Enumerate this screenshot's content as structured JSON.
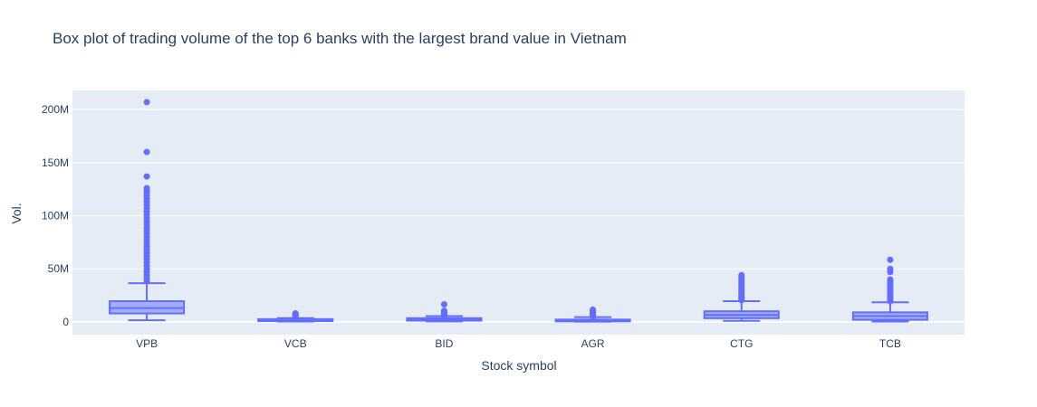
{
  "chart_data": {
    "type": "box",
    "title": "Box plot of trading volume of the top 6 banks with the largest brand value in Vietnam",
    "xlabel": "Stock symbol",
    "ylabel": "Vol.",
    "ylim": [
      -12000000,
      218000000
    ],
    "yticks": [
      0,
      50000000,
      100000000,
      150000000,
      200000000
    ],
    "ytick_labels": [
      "0",
      "50M",
      "100M",
      "150M",
      "200M"
    ],
    "grid": true,
    "legend": "none",
    "colors": {
      "box": "#636efa",
      "fill": "rgba(99,110,250,0.5)",
      "plot_bg": "#e5ecf6",
      "grid": "#ffffff",
      "text": "#2a3f5f"
    },
    "categories": [
      "VPB",
      "VCB",
      "BID",
      "AGR",
      "CTG",
      "TCB"
    ],
    "boxes": [
      {
        "name": "VPB",
        "min": 1500000,
        "q1": 8000000,
        "median": 13000000,
        "q3": 19500000,
        "max": 36500000,
        "outliers": [
          207000000,
          160000000,
          137000000,
          126000000,
          124000000,
          122000000,
          119000000,
          116000000,
          113000000,
          110000000,
          107000000,
          104000000,
          101000000,
          98000000,
          95000000,
          92000000,
          89000000,
          86000000,
          83000000,
          80000000,
          77000000,
          74000000,
          71000000,
          68000000,
          65000000,
          62000000,
          59000000,
          56000000,
          53000000,
          50000000,
          47000000,
          44000000,
          41000000,
          38500000
        ]
      },
      {
        "name": "VCB",
        "min": 300000,
        "q1": 800000,
        "median": 1500000,
        "q3": 2600000,
        "max": 3500000,
        "outliers": [
          4000000,
          4500000,
          5000000,
          5500000,
          6000000,
          6500000,
          7000000,
          7500000,
          8000000
        ]
      },
      {
        "name": "BID",
        "min": 500000,
        "q1": 1200000,
        "median": 2300000,
        "q3": 3500000,
        "max": 5500000,
        "outliers": [
          6000000,
          6500000,
          7000000,
          7500000,
          8000000,
          8500000,
          9000000,
          9500000,
          10500000,
          16500000
        ]
      },
      {
        "name": "AGR",
        "min": 200000,
        "q1": 500000,
        "median": 1200000,
        "q3": 2200000,
        "max": 4500000,
        "outliers": [
          5000000,
          5500000,
          6000000,
          6500000,
          7000000,
          7500000,
          8000000,
          8500000,
          9500000,
          10500000,
          11500000
        ]
      },
      {
        "name": "CTG",
        "min": 1000000,
        "q1": 3500000,
        "median": 6500000,
        "q3": 10000000,
        "max": 19500000,
        "outliers": [
          20500000,
          22000000,
          23500000,
          25000000,
          26500000,
          28000000,
          29500000,
          31000000,
          32500000,
          34000000,
          35500000,
          37000000,
          38500000,
          40000000,
          42000000,
          44000000
        ]
      },
      {
        "name": "TCB",
        "min": 300000,
        "q1": 2000000,
        "median": 5500000,
        "q3": 9000000,
        "max": 18500000,
        "outliers": [
          19500000,
          21000000,
          22500000,
          24000000,
          25500000,
          27000000,
          28500000,
          30000000,
          31500000,
          33000000,
          34500000,
          36000000,
          38000000,
          40000000,
          47000000,
          50000000,
          58500000
        ]
      }
    ]
  }
}
